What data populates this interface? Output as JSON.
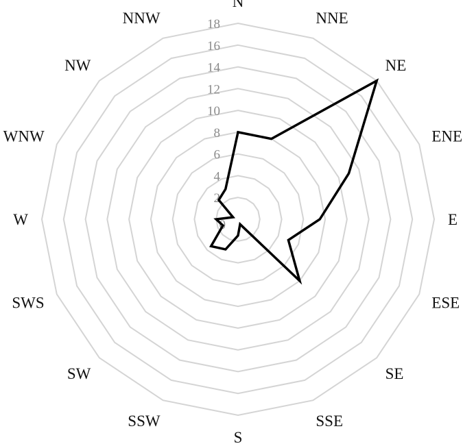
{
  "chart_data": {
    "type": "radar",
    "categories": [
      "N",
      "NNE",
      "NE",
      "ENE",
      "E",
      "ESE",
      "SE",
      "SSE",
      "S",
      "SSW",
      "SW",
      "SWS",
      "W",
      "WNW",
      "NW",
      "NNW"
    ],
    "series": [
      {
        "values": [
          8,
          8,
          18,
          11,
          7.5,
          5,
          8,
          0.5,
          1.5,
          3,
          3.5,
          1.5,
          2,
          0.5,
          2.5,
          3
        ]
      }
    ],
    "rlim": [
      0,
      18
    ],
    "ticks": [
      0,
      2,
      4,
      6,
      8,
      10,
      12,
      14,
      16,
      18
    ],
    "tick_labels": [
      "0",
      "2",
      "4",
      "6",
      "8",
      "10",
      "12",
      "14",
      "16",
      "18"
    ],
    "grid": true,
    "legend": "none",
    "colors": {
      "line": "#000000",
      "grid": "#d4d4d4",
      "tick_text": "#8c8c8c"
    }
  }
}
